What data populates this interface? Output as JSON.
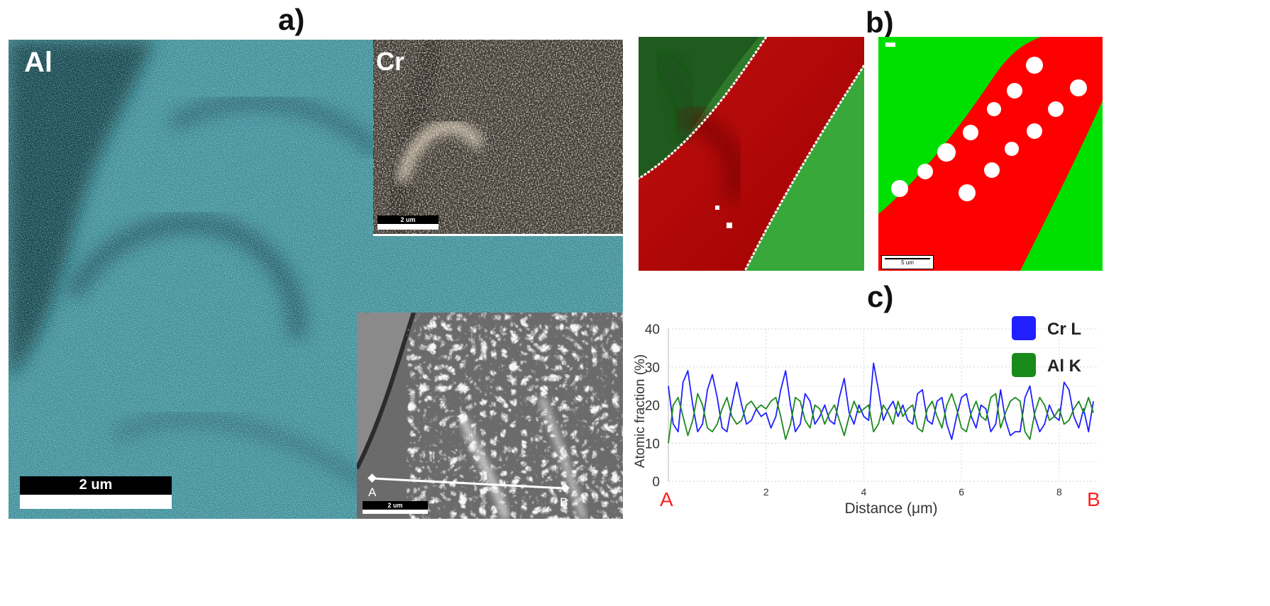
{
  "panel_a": {
    "label": "a)",
    "al_map": {
      "element": "Al",
      "scalebar": "2 um"
    },
    "cr_map": {
      "element": "Cr",
      "scalebar": "2 um"
    },
    "sem_image": {
      "scalebar": "2 um",
      "point_a": "A",
      "point_b": "B"
    }
  },
  "panel_b": {
    "label": "b)",
    "phase_map_scalebar": "5 um"
  },
  "panel_c": {
    "label": "c)",
    "endpoint_a": "A",
    "endpoint_b": "B"
  },
  "colors": {
    "al_map": "#3f8f99",
    "cr_map": "#8c8070",
    "cr_series": "#1f1fff",
    "al_series": "#1a8a1a",
    "phase_red": "#ff0000",
    "phase_green": "#00e000",
    "endpoint_labels": "#ff2020"
  },
  "chart_data": {
    "type": "line",
    "xlabel": "Distance (μm)",
    "ylabel": "Atomic fraction (%)",
    "xlim": [
      0,
      8.8
    ],
    "ylim": [
      0,
      40
    ],
    "xticks": [
      2,
      4,
      6,
      8
    ],
    "yticks": [
      0,
      10,
      20,
      30,
      40
    ],
    "grid": true,
    "legend_position": "top-right",
    "series": [
      {
        "name": "Cr L",
        "color": "#1f1fff",
        "x": [
          0,
          0.1,
          0.2,
          0.3,
          0.4,
          0.5,
          0.6,
          0.7,
          0.8,
          0.9,
          1.0,
          1.1,
          1.2,
          1.3,
          1.4,
          1.5,
          1.6,
          1.7,
          1.8,
          1.9,
          2.0,
          2.1,
          2.2,
          2.3,
          2.4,
          2.5,
          2.6,
          2.7,
          2.8,
          2.9,
          3.0,
          3.1,
          3.2,
          3.3,
          3.4,
          3.5,
          3.6,
          3.7,
          3.8,
          3.9,
          4.0,
          4.1,
          4.2,
          4.3,
          4.4,
          4.5,
          4.6,
          4.7,
          4.8,
          4.9,
          5.0,
          5.1,
          5.2,
          5.3,
          5.4,
          5.5,
          5.6,
          5.7,
          5.8,
          5.9,
          6.0,
          6.1,
          6.2,
          6.3,
          6.4,
          6.5,
          6.6,
          6.7,
          6.8,
          6.9,
          7.0,
          7.1,
          7.2,
          7.3,
          7.4,
          7.5,
          7.6,
          7.7,
          7.8,
          7.9,
          8.0,
          8.1,
          8.2,
          8.3,
          8.4,
          8.5,
          8.6,
          8.7
        ],
        "y": [
          25,
          15,
          13,
          26,
          29,
          20,
          13,
          15,
          24,
          28,
          22,
          14,
          13,
          20,
          26,
          20,
          15,
          16,
          19,
          17,
          18,
          14,
          17,
          24,
          29,
          20,
          13,
          15,
          23,
          21,
          15,
          17,
          20,
          16,
          15,
          22,
          27,
          18,
          15,
          20,
          17,
          16,
          31,
          24,
          16,
          19,
          21,
          17,
          20,
          16,
          15,
          23,
          24,
          16,
          15,
          21,
          22,
          15,
          11,
          17,
          22,
          23,
          17,
          14,
          20,
          19,
          13,
          15,
          24,
          16,
          12,
          13,
          13,
          22,
          25,
          17,
          13,
          15,
          20,
          17,
          16,
          26,
          24,
          17,
          14,
          19,
          13,
          21
        ]
      },
      {
        "name": "Al K",
        "color": "#1a8a1a",
        "x": [
          0,
          0.1,
          0.2,
          0.3,
          0.4,
          0.5,
          0.6,
          0.7,
          0.8,
          0.9,
          1.0,
          1.1,
          1.2,
          1.3,
          1.4,
          1.5,
          1.6,
          1.7,
          1.8,
          1.9,
          2.0,
          2.1,
          2.2,
          2.3,
          2.4,
          2.5,
          2.6,
          2.7,
          2.8,
          2.9,
          3.0,
          3.1,
          3.2,
          3.3,
          3.4,
          3.5,
          3.6,
          3.7,
          3.8,
          3.9,
          4.0,
          4.1,
          4.2,
          4.3,
          4.4,
          4.5,
          4.6,
          4.7,
          4.8,
          4.9,
          5.0,
          5.1,
          5.2,
          5.3,
          5.4,
          5.5,
          5.6,
          5.7,
          5.8,
          5.9,
          6.0,
          6.1,
          6.2,
          6.3,
          6.4,
          6.5,
          6.6,
          6.7,
          6.8,
          6.9,
          7.0,
          7.1,
          7.2,
          7.3,
          7.4,
          7.5,
          7.6,
          7.7,
          7.8,
          7.9,
          8.0,
          8.1,
          8.2,
          8.3,
          8.4,
          8.5,
          8.6,
          8.7
        ],
        "y": [
          10,
          20,
          22,
          17,
          12,
          16,
          23,
          20,
          14,
          13,
          15,
          19,
          22,
          17,
          15,
          16,
          20,
          21,
          19,
          20,
          19,
          21,
          22,
          17,
          11,
          15,
          22,
          21,
          16,
          14,
          20,
          19,
          15,
          18,
          20,
          16,
          12,
          17,
          21,
          18,
          19,
          20,
          13,
          15,
          20,
          18,
          15,
          21,
          17,
          19,
          20,
          14,
          13,
          19,
          21,
          17,
          14,
          20,
          23,
          19,
          14,
          13,
          18,
          21,
          17,
          16,
          22,
          23,
          14,
          18,
          21,
          22,
          21,
          13,
          11,
          18,
          22,
          20,
          16,
          17,
          19,
          15,
          16,
          19,
          21,
          18,
          22,
          18
        ]
      }
    ]
  }
}
